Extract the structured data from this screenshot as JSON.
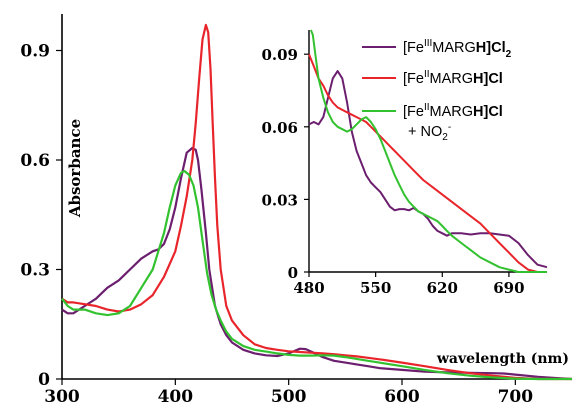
{
  "chart_data": [
    {
      "type": "line",
      "xlabel": "wavelength (nm)",
      "ylabel": "Absorbance",
      "xlim": [
        300,
        750
      ],
      "ylim": [
        0,
        1.0
      ],
      "xticks": [
        "300",
        "400",
        "500",
        "600",
        "700"
      ],
      "xtick_values": [
        300,
        400,
        500,
        600,
        700
      ],
      "yticks": [
        "0",
        "0.3",
        "0.6",
        "0.9"
      ],
      "ytick_values": [
        0,
        0.3,
        0.6,
        0.9
      ],
      "grid": false,
      "series": [
        {
          "key": "fe3",
          "color": "#6b1f6e",
          "x": [
            300,
            305,
            310,
            320,
            330,
            340,
            350,
            360,
            370,
            380,
            385,
            390,
            395,
            400,
            405,
            410,
            415,
            418,
            420,
            423,
            427,
            430,
            435,
            440,
            445,
            450,
            460,
            470,
            480,
            490,
            500,
            510,
            515,
            520,
            530,
            540,
            550,
            560,
            570,
            580,
            600,
            620,
            640,
            660,
            680,
            690,
            700,
            720,
            740,
            750
          ],
          "y": [
            0.19,
            0.18,
            0.18,
            0.2,
            0.22,
            0.25,
            0.27,
            0.3,
            0.33,
            0.35,
            0.355,
            0.37,
            0.41,
            0.47,
            0.55,
            0.62,
            0.633,
            0.628,
            0.6,
            0.52,
            0.4,
            0.3,
            0.2,
            0.15,
            0.12,
            0.1,
            0.08,
            0.07,
            0.065,
            0.063,
            0.07,
            0.083,
            0.082,
            0.075,
            0.06,
            0.05,
            0.045,
            0.04,
            0.035,
            0.03,
            0.025,
            0.02,
            0.018,
            0.017,
            0.016,
            0.015,
            0.012,
            0.006,
            0.002,
            0.0
          ]
        },
        {
          "key": "fe2",
          "color": "#e8252b",
          "x": [
            300,
            305,
            310,
            320,
            330,
            340,
            350,
            360,
            370,
            380,
            390,
            400,
            405,
            410,
            415,
            418,
            421,
            424,
            427,
            429,
            431,
            433,
            435,
            437,
            440,
            445,
            450,
            460,
            470,
            480,
            490,
            500,
            510,
            520,
            530,
            540,
            550,
            560,
            570,
            580,
            600,
            620,
            640,
            660,
            680,
            700,
            720,
            740,
            750
          ],
          "y": [
            0.22,
            0.21,
            0.21,
            0.205,
            0.2,
            0.19,
            0.185,
            0.19,
            0.205,
            0.23,
            0.28,
            0.35,
            0.42,
            0.5,
            0.6,
            0.7,
            0.82,
            0.93,
            0.97,
            0.95,
            0.85,
            0.7,
            0.55,
            0.42,
            0.3,
            0.2,
            0.16,
            0.12,
            0.095,
            0.085,
            0.08,
            0.076,
            0.074,
            0.072,
            0.07,
            0.068,
            0.065,
            0.062,
            0.058,
            0.054,
            0.045,
            0.035,
            0.025,
            0.016,
            0.009,
            0.003,
            0.0,
            0.0,
            0.0
          ]
        },
        {
          "key": "fe2no2",
          "color": "#33c22f",
          "x": [
            300,
            305,
            310,
            320,
            330,
            340,
            350,
            360,
            370,
            380,
            390,
            395,
            400,
            405,
            408,
            412,
            416,
            420,
            424,
            428,
            432,
            436,
            440,
            445,
            450,
            460,
            470,
            480,
            490,
            500,
            510,
            520,
            530,
            540,
            550,
            560,
            570,
            580,
            600,
            620,
            640,
            660,
            680,
            700,
            720,
            740,
            750
          ],
          "y": [
            0.22,
            0.2,
            0.19,
            0.19,
            0.18,
            0.175,
            0.18,
            0.2,
            0.25,
            0.3,
            0.4,
            0.47,
            0.53,
            0.565,
            0.57,
            0.56,
            0.53,
            0.47,
            0.38,
            0.29,
            0.23,
            0.19,
            0.16,
            0.13,
            0.11,
            0.09,
            0.08,
            0.075,
            0.07,
            0.066,
            0.064,
            0.064,
            0.065,
            0.064,
            0.06,
            0.055,
            0.05,
            0.045,
            0.035,
            0.025,
            0.016,
            0.009,
            0.004,
            0.001,
            0.0,
            0.0,
            0.0
          ]
        }
      ]
    },
    {
      "type": "line",
      "xlim": [
        480,
        730
      ],
      "ylim": [
        0,
        0.1
      ],
      "xticks": [
        "480",
        "550",
        "620",
        "690"
      ],
      "xtick_values": [
        480,
        550,
        620,
        690
      ],
      "yticks": [
        "0",
        "0.03",
        "0.06",
        "0.09"
      ],
      "ytick_values": [
        0,
        0.03,
        0.06,
        0.09
      ],
      "legend": "top-right",
      "series": [
        {
          "key": "fe3",
          "color": "#6b1f6e",
          "x": [
            480,
            485,
            490,
            495,
            500,
            505,
            510,
            515,
            520,
            525,
            530,
            535,
            540,
            545,
            550,
            555,
            560,
            565,
            570,
            575,
            580,
            585,
            590,
            595,
            600,
            605,
            610,
            615,
            620,
            625,
            630,
            640,
            650,
            660,
            670,
            680,
            690,
            700,
            710,
            720,
            730
          ],
          "y": [
            0.061,
            0.062,
            0.061,
            0.064,
            0.072,
            0.08,
            0.083,
            0.08,
            0.07,
            0.058,
            0.05,
            0.045,
            0.04,
            0.037,
            0.035,
            0.033,
            0.03,
            0.027,
            0.0255,
            0.026,
            0.026,
            0.0255,
            0.0265,
            0.025,
            0.024,
            0.022,
            0.019,
            0.017,
            0.016,
            0.015,
            0.016,
            0.016,
            0.0155,
            0.016,
            0.016,
            0.0155,
            0.015,
            0.012,
            0.007,
            0.003,
            0.002
          ]
        },
        {
          "key": "fe2",
          "color": "#e8252b",
          "x": [
            480,
            485,
            490,
            495,
            500,
            505,
            510,
            515,
            520,
            525,
            530,
            535,
            540,
            545,
            550,
            555,
            560,
            565,
            570,
            575,
            580,
            590,
            600,
            610,
            620,
            630,
            640,
            650,
            660,
            670,
            680,
            690,
            700,
            710,
            720,
            730
          ],
          "y": [
            0.09,
            0.085,
            0.08,
            0.077,
            0.073,
            0.07,
            0.068,
            0.067,
            0.066,
            0.065,
            0.064,
            0.063,
            0.062,
            0.06,
            0.058,
            0.056,
            0.054,
            0.052,
            0.05,
            0.048,
            0.046,
            0.042,
            0.038,
            0.035,
            0.032,
            0.029,
            0.026,
            0.023,
            0.02,
            0.016,
            0.012,
            0.008,
            0.004,
            0.001,
            0.0,
            0.0
          ]
        },
        {
          "key": "fe2no2",
          "color": "#33c22f",
          "x": [
            482,
            484,
            486,
            488,
            490,
            495,
            500,
            505,
            510,
            515,
            520,
            525,
            530,
            535,
            540,
            545,
            550,
            555,
            560,
            565,
            570,
            575,
            580,
            585,
            590,
            595,
            600,
            605,
            610,
            615,
            620,
            625,
            630,
            640,
            650,
            660,
            670,
            680,
            690,
            700,
            710,
            720,
            730
          ],
          "y": [
            0.1,
            0.098,
            0.092,
            0.086,
            0.08,
            0.072,
            0.066,
            0.062,
            0.06,
            0.059,
            0.058,
            0.059,
            0.061,
            0.063,
            0.064,
            0.062,
            0.059,
            0.055,
            0.05,
            0.045,
            0.04,
            0.036,
            0.032,
            0.029,
            0.027,
            0.025,
            0.024,
            0.023,
            0.022,
            0.021,
            0.019,
            0.017,
            0.015,
            0.012,
            0.009,
            0.006,
            0.004,
            0.002,
            0.001,
            0.0,
            0.0,
            0.0,
            0.0
          ]
        }
      ]
    }
  ],
  "legend": {
    "fe3": {
      "prefix": "[Fe",
      "sup": "III",
      "mid": "MARG",
      "bold": "H",
      "suffix": "]Cl",
      "sub": "2"
    },
    "fe2": {
      "prefix": "[Fe",
      "sup": "II",
      "mid": "MARG",
      "bold": "H",
      "suffix": "]Cl"
    },
    "fe2no2": {
      "prefix": "[Fe",
      "sup": "II",
      "mid": "MARG",
      "bold": "H",
      "suffix": "]Cl",
      "line2_plus": "+ NO",
      "line2_sub": "2",
      "line2_sup": "-"
    }
  }
}
